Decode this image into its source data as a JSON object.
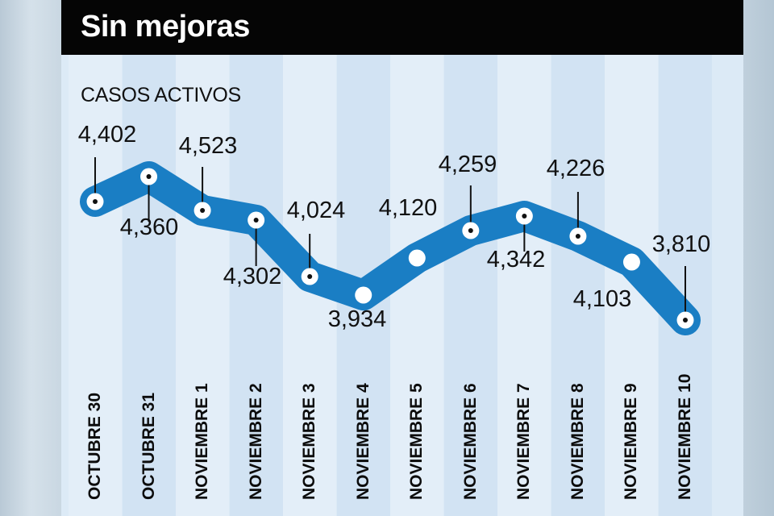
{
  "chart_data": {
    "type": "line",
    "title": "Sin mejoras",
    "ylabel": "CASOS ACTIVOS",
    "xlabel": "",
    "categories": [
      "OCTUBRE 30",
      "OCTUBRE 31",
      "NOVIEMBRE 1",
      "NOVIEMBRE 2",
      "NOVIEMBRE 3",
      "NOVIEMBRE 4",
      "NOVIEMBRE 5",
      "NOVIEMBRE 6",
      "NOVIEMBRE 7",
      "NOVIEMBRE 8",
      "NOVIEMBRE 9",
      "NOVIEMBRE 10"
    ],
    "values": [
      4402,
      4360,
      4523,
      4302,
      4024,
      3934,
      4120,
      4259,
      4342,
      4226,
      4103,
      3810
    ],
    "data_labels": [
      "4,402",
      "4,360",
      "4,523",
      "4,302",
      "4,024",
      "3,934",
      "4,120",
      "4,259",
      "4,342",
      "4,226",
      "4,103",
      "3,810"
    ],
    "grid": false,
    "legend": "none",
    "colors": {
      "line": "#1a7ec4",
      "marker": "#ffffff",
      "title_bar": "#050505",
      "background": "#dceaf6"
    }
  }
}
